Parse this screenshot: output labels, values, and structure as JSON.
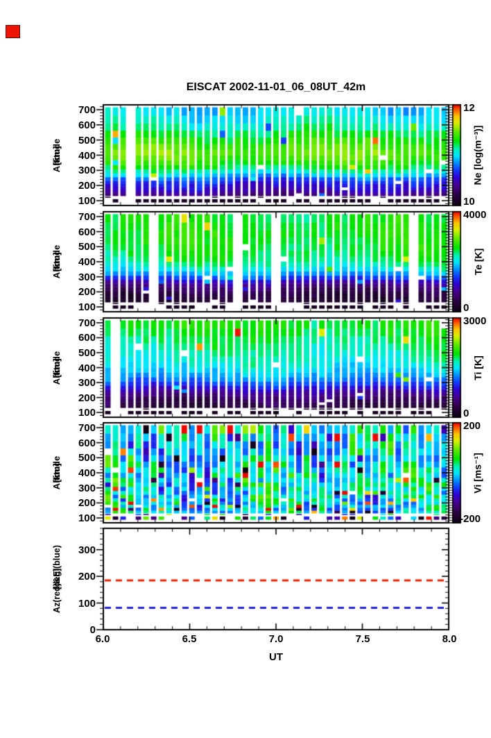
{
  "title": "EISCAT 2002-11-01_06_08UT_42m",
  "marker": {
    "name": "red-square",
    "color": "#ee1506"
  },
  "axes": {
    "x_label": "UT",
    "xlim": [
      6.0,
      8.0
    ],
    "x_ticks": [
      6.0,
      6.5,
      7.0,
      7.5,
      8.0
    ],
    "x_tick_labels": [
      "6.0",
      "6.5",
      "7.0",
      "7.5",
      "8.0"
    ],
    "x_minor_step": 0.1
  },
  "colormap": {
    "stops": [
      [
        0.0,
        "#0d0013"
      ],
      [
        0.1,
        "#2a0040"
      ],
      [
        0.2,
        "#48008c"
      ],
      [
        0.28,
        "#3000d0"
      ],
      [
        0.36,
        "#1040ff"
      ],
      [
        0.44,
        "#00a0ff"
      ],
      [
        0.5,
        "#00e8ff"
      ],
      [
        0.57,
        "#00f2b0"
      ],
      [
        0.64,
        "#00e400"
      ],
      [
        0.74,
        "#66ea00"
      ],
      [
        0.82,
        "#d8ef00"
      ],
      [
        0.89,
        "#ffc400"
      ],
      [
        0.95,
        "#ff6000"
      ],
      [
        1.0,
        "#ec0800"
      ]
    ]
  },
  "low_rows": {
    "alt1": [
      88,
      110
    ],
    "alt2": [
      114,
      126
    ],
    "prob1": 0.78,
    "prob2": 0.22
  },
  "chart_data": [
    {
      "type": "heatmap",
      "name": "Ne",
      "ylabel_lines": [
        "Altitude",
        "[km]"
      ],
      "y_ticks": [
        100,
        200,
        300,
        400,
        500,
        600,
        700
      ],
      "ylim": [
        68,
        732
      ],
      "y_minor_step": 20,
      "n_time_bins": 45,
      "alt_bin_edges": [
        132,
        150,
        169,
        189,
        210,
        232,
        256,
        281,
        308,
        337,
        368,
        401,
        437,
        476,
        518,
        563,
        611,
        662,
        716
      ],
      "clim": [
        10,
        12
      ],
      "colorbar": {
        "label": "Ne [log(m⁻³)]",
        "tick_labels": [
          "12",
          "10"
        ],
        "top_value": 12,
        "bottom_value": 10
      },
      "profile_alt": [
        95,
        140,
        165,
        190,
        215,
        245,
        270,
        300,
        340,
        380,
        420,
        460,
        520,
        580,
        640,
        710
      ],
      "profile_val": [
        10.0,
        10.35,
        10.5,
        10.55,
        10.62,
        10.75,
        10.95,
        11.15,
        11.32,
        11.42,
        11.45,
        11.4,
        11.3,
        11.15,
        11.05,
        10.95
      ],
      "noise": 0.07,
      "wave_amp": 0.07,
      "wave_period": 1.15,
      "outlier_prob": 0.01,
      "outlier_amp": 0.45,
      "outlier_sign": "both",
      "low_row_style": "dark",
      "seed": 11
    },
    {
      "type": "heatmap",
      "name": "Te",
      "ylabel_lines": [
        "Altitude",
        "[km]"
      ],
      "y_ticks": [
        100,
        200,
        300,
        400,
        500,
        600,
        700
      ],
      "ylim": [
        68,
        732
      ],
      "y_minor_step": 20,
      "n_time_bins": 45,
      "alt_bin_edges": [
        132,
        150,
        169,
        189,
        210,
        232,
        256,
        281,
        308,
        337,
        368,
        401,
        437,
        476,
        518,
        563,
        611,
        662,
        716
      ],
      "clim": [
        0,
        4000
      ],
      "colorbar": {
        "label": "Te [K]",
        "tick_labels": [
          "4000",
          "0"
        ],
        "top_value": 4000,
        "bottom_value": 0
      },
      "profile_alt": [
        95,
        140,
        165,
        190,
        215,
        245,
        270,
        300,
        340,
        380,
        420,
        460,
        520,
        580,
        640,
        710
      ],
      "profile_val": [
        150,
        250,
        320,
        420,
        560,
        760,
        1050,
        1550,
        2000,
        2250,
        2400,
        2500,
        2550,
        2570,
        2560,
        2500
      ],
      "noise": 130,
      "wave_amp": 130,
      "wave_period": 1.3,
      "outlier_prob": 0.02,
      "outlier_amp": 800,
      "outlier_sign": "pos",
      "low_row_style": "dark",
      "seed": 22
    },
    {
      "type": "heatmap",
      "name": "Ti",
      "ylabel_lines": [
        "Altitude",
        "[km]"
      ],
      "y_ticks": [
        100,
        200,
        300,
        400,
        500,
        600,
        700
      ],
      "ylim": [
        68,
        732
      ],
      "y_minor_step": 20,
      "n_time_bins": 45,
      "alt_bin_edges": [
        132,
        150,
        169,
        189,
        210,
        232,
        256,
        281,
        308,
        337,
        368,
        401,
        437,
        476,
        518,
        563,
        611,
        662,
        716
      ],
      "clim": [
        0,
        3000
      ],
      "colorbar": {
        "label": "Ti [K]",
        "tick_labels": [
          "3000",
          "0"
        ],
        "top_value": 3000,
        "bottom_value": 0
      },
      "profile_alt": [
        95,
        140,
        165,
        190,
        215,
        245,
        270,
        300,
        340,
        380,
        420,
        460,
        520,
        580,
        640,
        710
      ],
      "profile_val": [
        150,
        260,
        330,
        430,
        560,
        720,
        900,
        1120,
        1320,
        1460,
        1560,
        1650,
        1720,
        1800,
        1890,
        1960
      ],
      "noise": 110,
      "wave_amp": 90,
      "wave_period": 1.2,
      "outlier_prob": 0.015,
      "outlier_amp": 850,
      "outlier_sign": "pos",
      "low_row_style": "dark",
      "seed": 33
    },
    {
      "type": "heatmap",
      "name": "Vi",
      "ylabel_lines": [
        "Altitude",
        "[km]"
      ],
      "y_ticks": [
        100,
        200,
        300,
        400,
        500,
        600,
        700
      ],
      "ylim": [
        68,
        732
      ],
      "y_minor_step": 20,
      "n_time_bins": 45,
      "alt_bin_edges": [
        132,
        150,
        169,
        189,
        210,
        232,
        256,
        281,
        308,
        337,
        368,
        401,
        437,
        476,
        518,
        563,
        611,
        662,
        716
      ],
      "clim": [
        -200,
        200
      ],
      "colorbar": {
        "label": "Vi [ms⁻¹]",
        "tick_labels": [
          "200",
          "-200"
        ],
        "top_value": 200,
        "bottom_value": -200
      },
      "profile_alt": [
        95,
        710
      ],
      "profile_val": [
        0,
        0
      ],
      "noise": 60,
      "wave_amp": 25,
      "wave_period": 0.9,
      "outlier_prob": 0.07,
      "outlier_amp": 175,
      "outlier_sign": "both",
      "edge_boost": true,
      "low_row_style": "random",
      "seed": 44
    },
    {
      "type": "line",
      "name": "AzEl",
      "ylabel_lines": [
        "Az(red)&El(blue)",
        "[deg]"
      ],
      "y_ticks": [
        0,
        100,
        200,
        300
      ],
      "ylim": [
        0,
        380
      ],
      "y_minor_step": 20,
      "series": [
        {
          "label": "Az",
          "value": 185,
          "color": "#ee2200",
          "style": "dashed"
        },
        {
          "label": "El",
          "value": 82,
          "color": "#2222dd",
          "style": "dashed"
        }
      ]
    }
  ]
}
